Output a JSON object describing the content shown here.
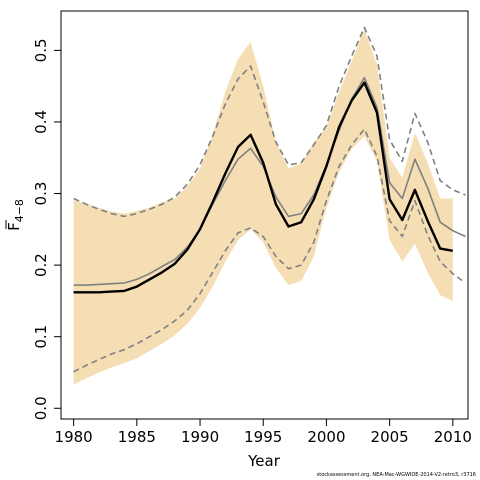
{
  "footer": "stockassessment.org, NEA-Mac-WGWIDE-2014-V2-retro3, r3716",
  "chart_data": {
    "type": "line",
    "xlabel": "Year",
    "ylabel_main": "F",
    "ylabel_sub": "4−8",
    "xlim": [
      1979,
      2011.2
    ],
    "ylim": [
      -0.015,
      0.555
    ],
    "xticks": [
      1980,
      1985,
      1990,
      1995,
      2000,
      2005,
      2010
    ],
    "yticks": [
      0.0,
      0.1,
      0.2,
      0.3,
      0.4,
      0.5
    ],
    "ytick_labels": [
      "0.0",
      "0.1",
      "0.2",
      "0.3",
      "0.4",
      "0.5"
    ],
    "colors": {
      "band": "#f5deb3",
      "estimate": "#000000",
      "retro_estimate": "#808080",
      "retro_bounds": "#808080"
    },
    "series": [
      {
        "role": "estimate",
        "x": [
          1980,
          1981,
          1982,
          1983,
          1984,
          1985,
          1986,
          1987,
          1988,
          1989,
          1990,
          1991,
          1992,
          1993,
          1994,
          1995,
          1996,
          1997,
          1998,
          1999,
          2000,
          2001,
          2002,
          2003,
          2004,
          2005,
          2006,
          2007,
          2008,
          2009,
          2010
        ],
        "values": [
          0.162,
          0.162,
          0.162,
          0.163,
          0.164,
          0.17,
          0.18,
          0.19,
          0.202,
          0.222,
          0.25,
          0.288,
          0.328,
          0.365,
          0.382,
          0.343,
          0.285,
          0.254,
          0.26,
          0.292,
          0.338,
          0.393,
          0.43,
          0.455,
          0.413,
          0.292,
          0.263,
          0.305,
          0.262,
          0.223,
          0.22
        ]
      },
      {
        "role": "band_upper",
        "x": [
          1980,
          1981,
          1982,
          1983,
          1984,
          1985,
          1986,
          1987,
          1988,
          1989,
          1990,
          1991,
          1992,
          1993,
          1994,
          1995,
          1996,
          1997,
          1998,
          1999,
          2000,
          2001,
          2002,
          2003,
          2004,
          2005,
          2006,
          2007,
          2008,
          2009,
          2010
        ],
        "values": [
          0.291,
          0.286,
          0.28,
          0.275,
          0.272,
          0.276,
          0.28,
          0.288,
          0.293,
          0.31,
          0.335,
          0.382,
          0.442,
          0.488,
          0.512,
          0.45,
          0.372,
          0.335,
          0.342,
          0.372,
          0.393,
          0.442,
          0.485,
          0.53,
          0.48,
          0.35,
          0.322,
          0.385,
          0.343,
          0.293,
          0.293
        ]
      },
      {
        "role": "band_lower",
        "x": [
          1980,
          1981,
          1982,
          1983,
          1984,
          1985,
          1986,
          1987,
          1988,
          1989,
          1990,
          1991,
          1992,
          1993,
          1994,
          1995,
          1996,
          1997,
          1998,
          1999,
          2000,
          2001,
          2002,
          2003,
          2004,
          2005,
          2006,
          2007,
          2008,
          2009,
          2010
        ],
        "values": [
          0.033,
          0.042,
          0.05,
          0.057,
          0.063,
          0.07,
          0.08,
          0.09,
          0.102,
          0.118,
          0.14,
          0.17,
          0.205,
          0.235,
          0.25,
          0.232,
          0.196,
          0.172,
          0.178,
          0.212,
          0.28,
          0.33,
          0.362,
          0.38,
          0.345,
          0.235,
          0.205,
          0.23,
          0.19,
          0.158,
          0.15
        ]
      },
      {
        "role": "retro_estimate",
        "x": [
          1980,
          1981,
          1982,
          1983,
          1984,
          1985,
          1986,
          1987,
          1988,
          1989,
          1990,
          1991,
          1992,
          1993,
          1994,
          1995,
          1996,
          1997,
          1998,
          1999,
          2000,
          2001,
          2002,
          2003,
          2004,
          2005,
          2006,
          2007,
          2008,
          2009,
          2010,
          2011
        ],
        "values": [
          0.172,
          0.172,
          0.173,
          0.174,
          0.175,
          0.18,
          0.188,
          0.198,
          0.208,
          0.225,
          0.25,
          0.285,
          0.318,
          0.348,
          0.363,
          0.338,
          0.295,
          0.268,
          0.272,
          0.298,
          0.34,
          0.388,
          0.432,
          0.462,
          0.42,
          0.315,
          0.293,
          0.348,
          0.308,
          0.26,
          0.248,
          0.24
        ]
      },
      {
        "role": "retro_upper",
        "x": [
          1980,
          1981,
          1982,
          1983,
          1984,
          1985,
          1986,
          1987,
          1988,
          1989,
          1990,
          1991,
          1992,
          1993,
          1994,
          1995,
          1996,
          1997,
          1998,
          1999,
          2000,
          2001,
          2002,
          2003,
          2004,
          2005,
          2006,
          2007,
          2008,
          2009,
          2010,
          2011
        ],
        "values": [
          0.293,
          0.285,
          0.278,
          0.272,
          0.268,
          0.272,
          0.278,
          0.285,
          0.295,
          0.313,
          0.34,
          0.38,
          0.425,
          0.46,
          0.478,
          0.428,
          0.372,
          0.34,
          0.343,
          0.368,
          0.395,
          0.45,
          0.492,
          0.532,
          0.492,
          0.375,
          0.345,
          0.412,
          0.372,
          0.318,
          0.305,
          0.298
        ]
      },
      {
        "role": "retro_lower",
        "x": [
          1980,
          1981,
          1982,
          1983,
          1984,
          1985,
          1986,
          1987,
          1988,
          1989,
          1990,
          1991,
          1992,
          1993,
          1994,
          1995,
          1996,
          1997,
          1998,
          1999,
          2000,
          2001,
          2002,
          2003,
          2004,
          2005,
          2006,
          2007,
          2008,
          2009,
          2010,
          2011
        ],
        "values": [
          0.051,
          0.06,
          0.068,
          0.076,
          0.082,
          0.09,
          0.1,
          0.11,
          0.122,
          0.137,
          0.16,
          0.19,
          0.22,
          0.245,
          0.252,
          0.24,
          0.212,
          0.195,
          0.2,
          0.232,
          0.29,
          0.338,
          0.368,
          0.39,
          0.352,
          0.262,
          0.24,
          0.29,
          0.242,
          0.205,
          0.188,
          0.175
        ]
      }
    ]
  }
}
